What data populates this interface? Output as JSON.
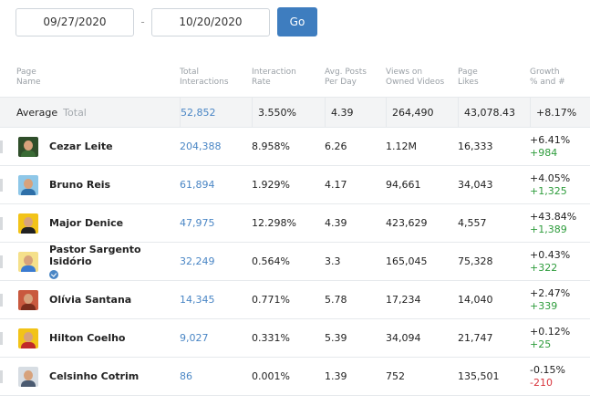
{
  "date_range": {
    "start": "09/27/2020",
    "separator": "-",
    "end": "10/20/2020",
    "go_label": "Go"
  },
  "table": {
    "headers": [
      "Page\nName",
      "Total\nInteractions",
      "Interaction\nRate",
      "Avg. Posts\nPer Day",
      "Views on\nOwned Videos",
      "Page\nLikes",
      "Growth\n% and #"
    ],
    "average": {
      "label": "Average",
      "sublabel": "Total",
      "interactions": "52,852",
      "rate": "3.550%",
      "posts": "4.39",
      "views": "264,490",
      "likes": "43,078.43",
      "growth": "+8.17%"
    },
    "rows": [
      {
        "name": "Cezar Leite",
        "interactions": "204,388",
        "rate": "8.958%",
        "posts": "6.26",
        "views": "1.12M",
        "likes": "16,333",
        "growth_pct": "+6.41%",
        "growth_num": "+984",
        "avatar": "avatar-photo",
        "avatar_bg": "#2f4e2a",
        "avatar_body": "#3a6b35",
        "verified": false
      },
      {
        "name": "Bruno Reis",
        "interactions": "61,894",
        "rate": "1.929%",
        "posts": "4.17",
        "views": "94,661",
        "likes": "34,043",
        "growth_pct": "+4.05%",
        "growth_num": "+1,325",
        "avatar": "avatar-photo",
        "avatar_bg": "#8ec7e8",
        "avatar_body": "#2e6fa8",
        "verified": false
      },
      {
        "name": "Major Denice",
        "interactions": "47,975",
        "rate": "12.298%",
        "posts": "4.39",
        "views": "423,629",
        "likes": "4,557",
        "growth_pct": "+43.84%",
        "growth_num": "+1,389",
        "avatar": "avatar-photo",
        "avatar_bg": "#f2c318",
        "avatar_body": "#222222",
        "verified": false
      },
      {
        "name": "Pastor Sargento Isidório",
        "interactions": "32,249",
        "rate": "0.564%",
        "posts": "3.3",
        "views": "165,045",
        "likes": "75,328",
        "growth_pct": "+0.43%",
        "growth_num": "+322",
        "avatar": "avatar-photo",
        "avatar_bg": "#f5e08a",
        "avatar_body": "#3b7bd0",
        "verified": true
      },
      {
        "name": "Olívia Santana",
        "interactions": "14,345",
        "rate": "0.771%",
        "posts": "5.78",
        "views": "17,234",
        "likes": "14,040",
        "growth_pct": "+2.47%",
        "growth_num": "+339",
        "avatar": "avatar-photo",
        "avatar_bg": "#c9593e",
        "avatar_body": "#7a2d1c",
        "verified": false
      },
      {
        "name": "Hilton Coelho",
        "interactions": "9,027",
        "rate": "0.331%",
        "posts": "5.39",
        "views": "34,094",
        "likes": "21,747",
        "growth_pct": "+0.12%",
        "growth_num": "+25",
        "avatar": "avatar-logo",
        "avatar_bg": "#f2c318",
        "avatar_body": "#c02a2a",
        "verified": false
      },
      {
        "name": "Celsinho Cotrim",
        "interactions": "86",
        "rate": "0.001%",
        "posts": "1.39",
        "views": "752",
        "likes": "135,501",
        "growth_pct": "-0.15%",
        "growth_num": "-210",
        "avatar": "avatar-photo",
        "avatar_bg": "#d7dde3",
        "avatar_body": "#4a5a70",
        "verified": false
      }
    ]
  },
  "colors": {
    "accent": "#3e7dbf",
    "link": "#4a86c5",
    "positive": "#2e9c3c",
    "negative": "#d9363e"
  }
}
